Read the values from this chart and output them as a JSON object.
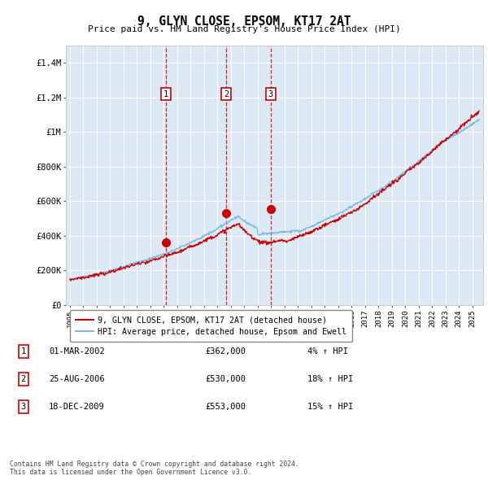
{
  "title": "9, GLYN CLOSE, EPSOM, KT17 2AT",
  "subtitle": "Price paid vs. HM Land Registry's House Price Index (HPI)",
  "ylabel_ticks": [
    "£0",
    "£200K",
    "£400K",
    "£600K",
    "£800K",
    "£1M",
    "£1.2M",
    "£1.4M"
  ],
  "ytick_vals": [
    0,
    200000,
    400000,
    600000,
    800000,
    1000000,
    1200000,
    1400000
  ],
  "ylim": [
    0,
    1500000
  ],
  "xlim_start": 1994.7,
  "xlim_end": 2025.8,
  "bg_color": "#dce9f5",
  "grid_color": "#ffffff",
  "hpi_color": "#7ab8e8",
  "price_color": "#cc0000",
  "sale1_x": 2002.17,
  "sale1_y": 362000,
  "sale2_x": 2006.65,
  "sale2_y": 530000,
  "sale3_x": 2009.97,
  "sale3_y": 553000,
  "legend_label_price": "9, GLYN CLOSE, EPSOM, KT17 2AT (detached house)",
  "legend_label_hpi": "HPI: Average price, detached house, Epsom and Ewell",
  "table_rows": [
    {
      "num": "1",
      "date": "01-MAR-2002",
      "price": "£362,000",
      "change": "4% ↑ HPI"
    },
    {
      "num": "2",
      "date": "25-AUG-2006",
      "price": "£530,000",
      "change": "18% ↑ HPI"
    },
    {
      "num": "3",
      "date": "18-DEC-2009",
      "price": "£553,000",
      "change": "15% ↑ HPI"
    }
  ],
  "footnote": "Contains HM Land Registry data © Crown copyright and database right 2024.\nThis data is licensed under the Open Government Licence v3.0.",
  "xtick_years": [
    1995,
    1996,
    1997,
    1998,
    1999,
    2000,
    2001,
    2002,
    2003,
    2004,
    2005,
    2006,
    2007,
    2008,
    2009,
    2010,
    2011,
    2012,
    2013,
    2014,
    2015,
    2016,
    2017,
    2018,
    2019,
    2020,
    2021,
    2022,
    2023,
    2024,
    2025
  ]
}
